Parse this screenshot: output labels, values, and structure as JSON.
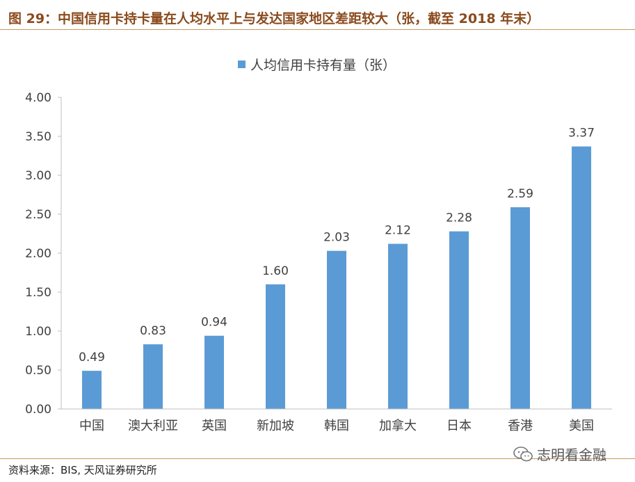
{
  "figure": {
    "title": "图 29：中国信用卡持卡量在人均水平上与发达国家地区差距较大（张，截至 2018 年末）",
    "source": "资料来源：BIS, 天风证券研究所",
    "watermark": "志明看金融",
    "watermark_icon": "wechat-icon"
  },
  "chart_data": {
    "type": "bar",
    "categories": [
      "中国",
      "澳大利亚",
      "英国",
      "新加坡",
      "韩国",
      "加拿大",
      "日本",
      "香港",
      "美国"
    ],
    "series": [
      {
        "name": "人均信用卡持有量（张）",
        "values": [
          0.49,
          0.83,
          0.94,
          1.6,
          2.03,
          2.12,
          2.28,
          2.59,
          3.37
        ]
      }
    ],
    "data_labels": [
      "0.49",
      "0.83",
      "0.94",
      "1.60",
      "2.03",
      "2.12",
      "2.28",
      "2.59",
      "3.37"
    ],
    "yticks": [
      "0.00",
      "0.50",
      "1.00",
      "1.50",
      "2.00",
      "2.50",
      "3.00",
      "3.50",
      "4.00"
    ],
    "ylim": [
      0,
      4
    ],
    "legend_position": "top",
    "grid": false,
    "bar_color": "#5b9bd5",
    "axis_color": "#bfbfbf"
  }
}
